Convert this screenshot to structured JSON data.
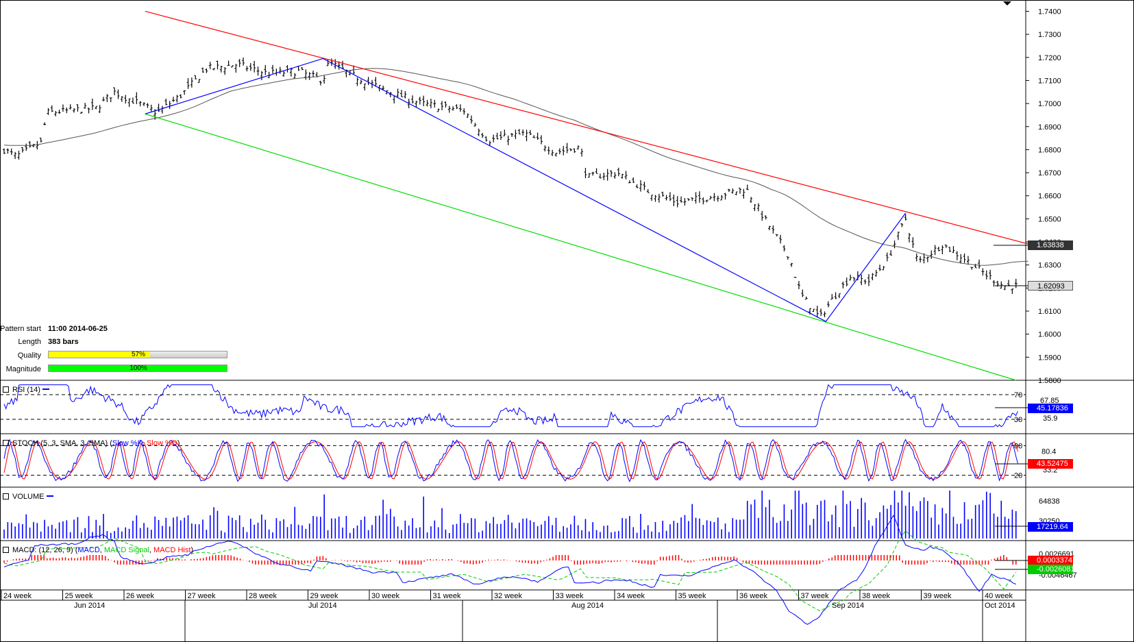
{
  "pattern": {
    "start_label": "Pattern start",
    "start_value": "11:00 2014-06-25",
    "length_label": "Length",
    "length_value": "383 bars",
    "quality_label": "Quality",
    "quality_value": "57%",
    "quality_pct": 57,
    "magnitude_label": "Magnitude",
    "magnitude_value": "100%",
    "magnitude_pct": 100
  },
  "indicators": {
    "rsi_label": "RSI (14)",
    "stoch_label_main": "STOCH (5, 3, SMA, 3, SMA)",
    "stoch_label_k": "Slow %K",
    "stoch_label_d": "Slow %D",
    "volume_label": "VOLUME",
    "macd_label_main": "MACD: (12, 26, 9)",
    "macd_label_macd": "MACD",
    "macd_label_signal": "MACD Signal",
    "macd_label_hist": "MACD Hist"
  },
  "tags": {
    "ma_value": "1.63838",
    "price_value": "1.62093",
    "rsi_value": "45.17836",
    "stoch_value": "43.52475",
    "volume_value": "17219.64",
    "macd_value": "0.0003374",
    "macd_signal_value": "-0.0026081"
  },
  "colors": {
    "resistance": "#ff0000",
    "support": "#00dd00",
    "pattern_line": "#0000ff",
    "moving_average": "#555555",
    "rsi_line": "#0000ff",
    "stoch_k": "#0000ff",
    "stoch_d": "#ff0000",
    "volume": "#0000ff",
    "macd": "#0000ff",
    "macd_signal": "#00cc00",
    "macd_hist": "#ff0000"
  },
  "chart_data": {
    "type": "line",
    "title": "",
    "price_axis": {
      "ticks": [
        "1.7400",
        "1.7300",
        "1.7200",
        "1.7100",
        "1.7000",
        "1.6900",
        "1.6800",
        "1.6700",
        "1.6600",
        "1.6500",
        "1.6400",
        "1.6300",
        "1.6200",
        "1.6100",
        "1.6000",
        "1.5900",
        "1.5800"
      ],
      "ylim": [
        1.58,
        1.744
      ]
    },
    "x_axis": {
      "week_labels": [
        "24 week",
        "25 week",
        "26 week",
        "27 week",
        "28 week",
        "29 week",
        "30 week",
        "31 week",
        "32 week",
        "33 week",
        "34 week",
        "35 week",
        "36 week",
        "37 week",
        "38 week",
        "39 week",
        "40 week"
      ],
      "month_labels": [
        "Jun 2014",
        "Jul 2014",
        "Aug 2014",
        "Sep 2014",
        "Oct 2014"
      ]
    },
    "price_series_anchors": [
      {
        "week": 0.0,
        "close": 1.68
      },
      {
        "week": 0.2,
        "close": 1.677
      },
      {
        "week": 0.6,
        "close": 1.683
      },
      {
        "week": 0.7,
        "close": 1.696
      },
      {
        "week": 1.5,
        "close": 1.698
      },
      {
        "week": 1.8,
        "close": 1.705
      },
      {
        "week": 2.2,
        "close": 1.7
      },
      {
        "week": 2.5,
        "close": 1.696
      },
      {
        "week": 2.9,
        "close": 1.704
      },
      {
        "week": 3.3,
        "close": 1.715
      },
      {
        "week": 3.8,
        "close": 1.717
      },
      {
        "week": 4.3,
        "close": 1.713
      },
      {
        "week": 4.8,
        "close": 1.714
      },
      {
        "week": 5.2,
        "close": 1.71
      },
      {
        "week": 5.3,
        "close": 1.718
      },
      {
        "week": 5.7,
        "close": 1.712
      },
      {
        "week": 6.2,
        "close": 1.706
      },
      {
        "week": 6.8,
        "close": 1.7
      },
      {
        "week": 7.5,
        "close": 1.697
      },
      {
        "week": 7.9,
        "close": 1.684
      },
      {
        "week": 8.5,
        "close": 1.687
      },
      {
        "week": 9.0,
        "close": 1.679
      },
      {
        "week": 9.4,
        "close": 1.681
      },
      {
        "week": 9.5,
        "close": 1.668
      },
      {
        "week": 10.0,
        "close": 1.67
      },
      {
        "week": 10.5,
        "close": 1.662
      },
      {
        "week": 11.0,
        "close": 1.657
      },
      {
        "week": 11.6,
        "close": 1.66
      },
      {
        "week": 12.1,
        "close": 1.663
      },
      {
        "week": 12.4,
        "close": 1.65
      },
      {
        "week": 12.8,
        "close": 1.634
      },
      {
        "week": 13.0,
        "close": 1.617
      },
      {
        "week": 13.3,
        "close": 1.607
      },
      {
        "week": 13.5,
        "close": 1.615
      },
      {
        "week": 13.8,
        "close": 1.625
      },
      {
        "week": 14.1,
        "close": 1.623
      },
      {
        "week": 14.4,
        "close": 1.632
      },
      {
        "week": 14.7,
        "close": 1.65
      },
      {
        "week": 14.9,
        "close": 1.631
      },
      {
        "week": 15.3,
        "close": 1.639
      },
      {
        "week": 15.7,
        "close": 1.632
      },
      {
        "week": 16.0,
        "close": 1.626
      },
      {
        "week": 16.3,
        "close": 1.621
      },
      {
        "week": 16.55,
        "close": 1.6209
      }
    ],
    "resistance_line": [
      {
        "week": 2.3,
        "price": 1.74
      },
      {
        "week": 17.0,
        "price": 1.637
      }
    ],
    "support_line": [
      {
        "week": 2.3,
        "price": 1.6955
      },
      {
        "week": 16.5,
        "price": 1.58
      }
    ],
    "pattern_zigzag": [
      {
        "week": 2.3,
        "price": 1.6955
      },
      {
        "week": 5.2,
        "price": 1.7195
      },
      {
        "week": 13.4,
        "price": 1.6055
      },
      {
        "week": 14.7,
        "price": 1.6525
      }
    ],
    "rsi": {
      "levels": [
        70,
        30
      ],
      "axis_labels": [
        "67.85",
        "35.9"
      ],
      "last": 45.17836
    },
    "stoch": {
      "levels": [
        80,
        20
      ],
      "axis_labels": [
        "80.4",
        "33.2"
      ],
      "last": 43.52475
    },
    "volume": {
      "axis_labels": [
        "64838",
        "30250"
      ],
      "last": 17219.64
    },
    "macd": {
      "axis_labels": [
        "0.0026691",
        "-0.0046467"
      ],
      "macd_last": 0.0003374,
      "signal_last": -0.0026081
    }
  }
}
